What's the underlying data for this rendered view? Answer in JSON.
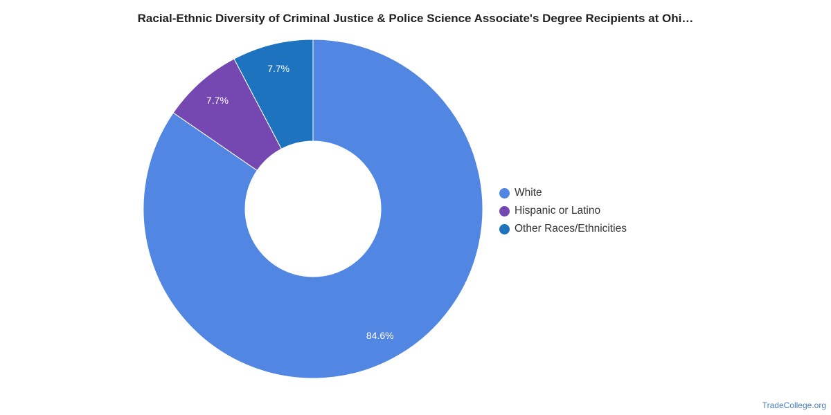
{
  "chart_data": {
    "type": "pie",
    "title": "Racial-Ethnic Diversity of Criminal Justice & Police Science Associate's Degree Recipients at Ohi…",
    "donut": true,
    "legend_position": "right",
    "series": [
      {
        "name": "White",
        "value": 84.6,
        "label": "84.6%",
        "color": "#5286e3"
      },
      {
        "name": "Hispanic or Latino",
        "value": 7.7,
        "label": "7.7%",
        "color": "#7448b0"
      },
      {
        "name": "Other Races/Ethnicities",
        "value": 7.7,
        "label": "7.7%",
        "color": "#1d73bd"
      }
    ]
  },
  "source": "TradeCollege.org"
}
